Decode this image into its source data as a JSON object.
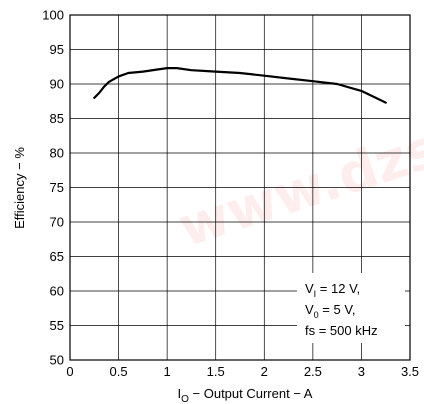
{
  "chart_data": {
    "type": "line",
    "xlabel": {
      "prefix": "I",
      "subscript": "O",
      "text": " − Output Current − A"
    },
    "ylabel": "Efficiency − %",
    "xlim": [
      0,
      3.5
    ],
    "ylim": [
      50,
      100
    ],
    "xticks": [
      "0",
      "0.5",
      "1",
      "1.5",
      "2",
      "2.5",
      "3",
      "3.5"
    ],
    "yticks": [
      "50",
      "55",
      "60",
      "65",
      "70",
      "75",
      "80",
      "85",
      "90",
      "95",
      "100"
    ],
    "grid": true,
    "series": [
      {
        "x": [
          0.25,
          0.3,
          0.35,
          0.4,
          0.5,
          0.6,
          0.75,
          0.9,
          1.0,
          1.1,
          1.25,
          1.5,
          1.75,
          2.0,
          2.25,
          2.5,
          2.75,
          3.0,
          3.25
        ],
        "y": [
          88.0,
          88.7,
          89.6,
          90.3,
          91.1,
          91.6,
          91.8,
          92.1,
          92.3,
          92.3,
          92.0,
          91.8,
          91.6,
          91.2,
          90.8,
          90.4,
          90.0,
          89.0,
          87.3
        ],
        "color": "#000000"
      }
    ],
    "annotations": [
      {
        "prefix": "V",
        "subscript": "I",
        "text": " = 12 V,"
      },
      {
        "prefix": "V",
        "subscript": "0",
        "text": " = 5 V,"
      },
      {
        "prefix": "",
        "subscript": "",
        "text": "fs = 500 kHz"
      }
    ],
    "watermark": "www.dzsc.com"
  }
}
